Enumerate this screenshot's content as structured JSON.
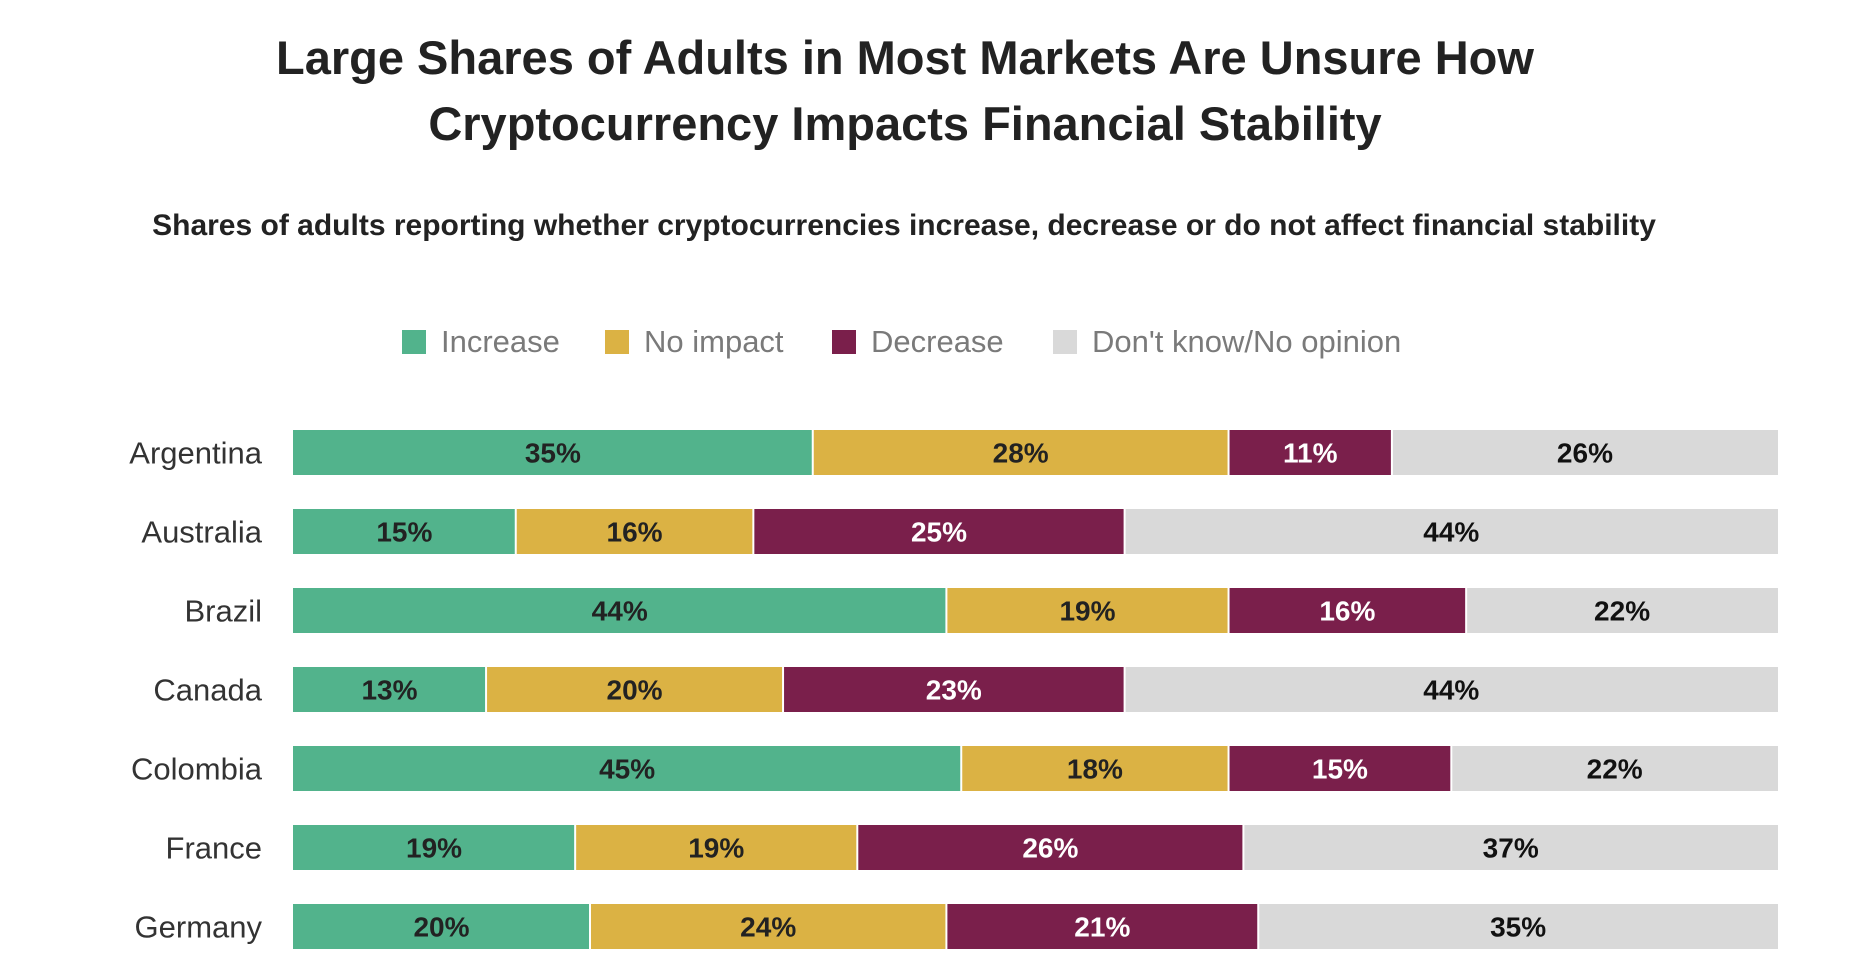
{
  "chart_data": {
    "type": "bar",
    "orientation": "horizontal",
    "stacked": true,
    "title_lines": [
      "Large Shares of Adults in Most Markets Are Unsure How",
      "Cryptocurrency Impacts Financial Stability"
    ],
    "subtitle": "Shares of adults reporting whether cryptocurrencies increase, decrease or do not affect financial stability",
    "legend_position": "top",
    "categories": [
      "Argentina",
      "Australia",
      "Brazil",
      "Canada",
      "Colombia",
      "France",
      "Germany"
    ],
    "series": [
      {
        "name": "Increase",
        "color": "#52b38c",
        "label_color": "#222222",
        "values": [
          35,
          15,
          44,
          13,
          45,
          19,
          20
        ],
        "labels": [
          "35%",
          "15%",
          "44%",
          "13%",
          "45%",
          "19%",
          "20%"
        ]
      },
      {
        "name": "No impact",
        "color": "#dbb244",
        "label_color": "#222222",
        "values": [
          28,
          16,
          19,
          20,
          18,
          19,
          24
        ],
        "labels": [
          "28%",
          "16%",
          "19%",
          "20%",
          "18%",
          "19%",
          "24%"
        ]
      },
      {
        "name": "Decrease",
        "color": "#7a1f4b",
        "label_color": "#ffffff",
        "values": [
          11,
          25,
          16,
          23,
          15,
          26,
          21
        ],
        "labels": [
          "11%",
          "25%",
          "16%",
          "23%",
          "15%",
          "26%",
          "21%"
        ]
      },
      {
        "name": "Don't know/No opinion",
        "color": "#d9d9d9",
        "label_color": "#111111",
        "values": [
          26,
          44,
          22,
          44,
          22,
          37,
          35
        ],
        "labels": [
          "26%",
          "44%",
          "22%",
          "44%",
          "22%",
          "37%",
          "35%"
        ]
      }
    ],
    "xlim": [
      0,
      100
    ],
    "grid": false
  }
}
